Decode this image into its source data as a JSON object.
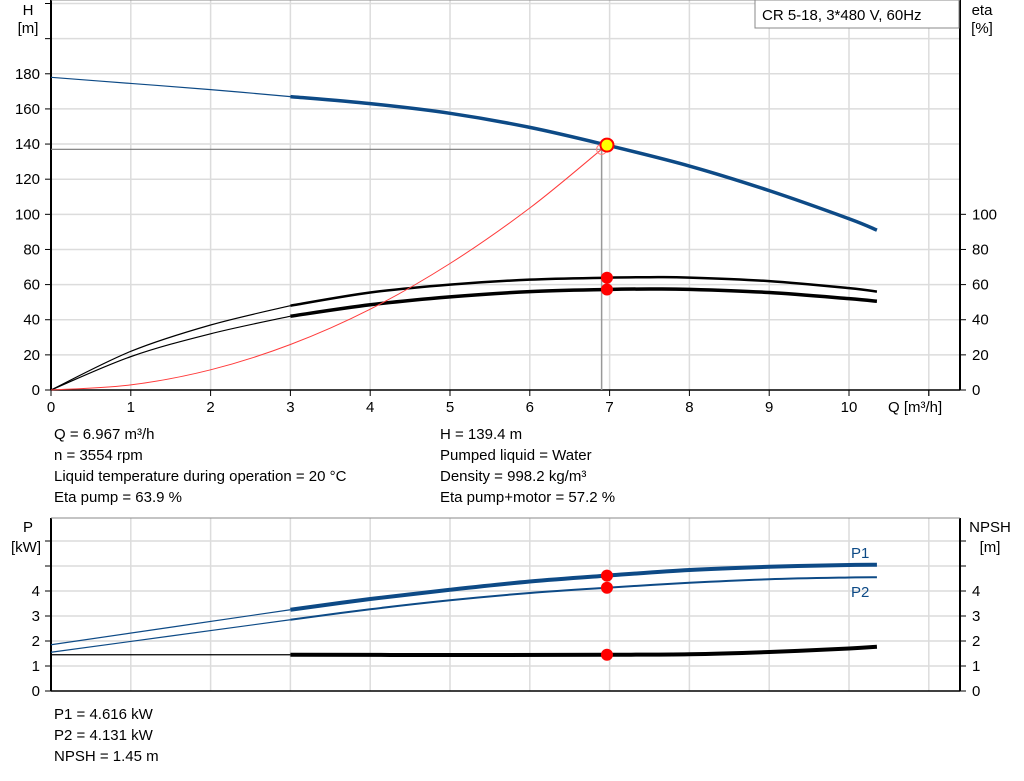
{
  "legend_box": "CR 5-18, 3*480 V, 60Hz",
  "chart_data": [
    {
      "type": "line",
      "xlabel": "Q [m³/h]",
      "ylabel": "H",
      "ylabel_unit": "[m]",
      "y2label": "eta",
      "y2label_unit": "[%]",
      "xlim": [
        0,
        11.4
      ],
      "ylim": [
        0,
        220
      ],
      "y2lim": [
        0,
        220
      ],
      "grid": true,
      "x_ticks": [
        "0",
        "1",
        "2",
        "3",
        "4",
        "5",
        "6",
        "7",
        "8",
        "9",
        "10"
      ],
      "y_ticks": [
        "0",
        "20",
        "40",
        "60",
        "80",
        "100",
        "120",
        "140",
        "160",
        "180"
      ],
      "y2_ticks": [
        "0",
        "20",
        "40",
        "60",
        "80",
        "100"
      ],
      "series": [
        {
          "id": "H",
          "axis": "left",
          "color": "#0d4a86",
          "thin_until": 3,
          "x": [
            0,
            1,
            2,
            3,
            4,
            5,
            6,
            6.967,
            8,
            9,
            10,
            10.35
          ],
          "y": [
            178,
            174.5,
            171,
            167,
            163,
            157.5,
            149.5,
            139.4,
            127.5,
            113.5,
            97.5,
            91
          ]
        },
        {
          "id": "eta_pump",
          "axis": "right",
          "color": "#000000",
          "thin_until": 3,
          "x": [
            0,
            1,
            2,
            3,
            4,
            5,
            6,
            6.967,
            7.5,
            8,
            9,
            10,
            10.35
          ],
          "y": [
            0,
            22,
            37,
            48,
            55.5,
            60,
            62.8,
            63.9,
            64.2,
            64,
            62,
            58,
            56
          ]
        },
        {
          "id": "eta_total",
          "axis": "right",
          "color": "#000000",
          "thin_until": 3,
          "x": [
            0,
            1,
            2,
            3,
            4,
            5,
            6,
            6.967,
            7.5,
            8,
            9,
            10,
            10.35
          ],
          "y": [
            0,
            19,
            32,
            42,
            48.5,
            53,
            56,
            57.2,
            57.5,
            57.3,
            55.5,
            52,
            50.5
          ]
        },
        {
          "id": "system_curve",
          "axis": "left",
          "color": "#ff3b3b",
          "thin_until": 99,
          "x": [
            0,
            1,
            2,
            3,
            4,
            5,
            6,
            6.9
          ],
          "y": [
            0,
            2.9,
            11.5,
            25.9,
            46,
            72,
            103.6,
            137
          ]
        }
      ],
      "operating_point": {
        "Q": 6.967,
        "H": 139.4,
        "eta_pump": 63.9,
        "eta_total": 57.2,
        "H_system": 137,
        "Q_system": 6.9
      }
    },
    {
      "type": "line",
      "ylabel": "P",
      "ylabel_unit": "[kW]",
      "y2label": "NPSH",
      "y2label_unit": "[m]",
      "xlim": [
        0,
        11.4
      ],
      "ylim": [
        0,
        6.9
      ],
      "y2lim": [
        0,
        6.9
      ],
      "grid": true,
      "y_ticks": [
        "0",
        "1",
        "2",
        "3",
        "4"
      ],
      "y2_ticks": [
        "0",
        "1",
        "2",
        "3",
        "4"
      ],
      "series": [
        {
          "id": "P1",
          "name": "P1",
          "axis": "left",
          "color": "#0d4a86",
          "thin_until": 3,
          "x": [
            0,
            3,
            4,
            5,
            6,
            6.967,
            8,
            9,
            10,
            10.35
          ],
          "y": [
            1.85,
            3.25,
            3.68,
            4.05,
            4.38,
            4.616,
            4.84,
            4.97,
            5.04,
            5.05
          ]
        },
        {
          "id": "P2",
          "name": "P2",
          "axis": "left",
          "color": "#0d4a86",
          "thin_until": 3,
          "x": [
            0,
            3,
            4,
            5,
            6,
            6.967,
            8,
            9,
            10,
            10.35
          ],
          "y": [
            1.55,
            2.85,
            3.27,
            3.63,
            3.92,
            4.131,
            4.33,
            4.47,
            4.54,
            4.55
          ]
        },
        {
          "id": "NPSH",
          "axis": "right",
          "color": "#000000",
          "thin_until": 3,
          "x": [
            0,
            3,
            5,
            6.967,
            8,
            9,
            10,
            10.35
          ],
          "y": [
            1.45,
            1.45,
            1.44,
            1.45,
            1.47,
            1.56,
            1.7,
            1.77
          ]
        }
      ],
      "operating_point": {
        "Q": 6.967,
        "P1": 4.616,
        "P2": 4.131,
        "NPSH": 1.45
      }
    }
  ],
  "info_left": [
    "Q = 6.967 m³/h",
    "n = 3554 rpm",
    "Liquid temperature during operation = 20 °C",
    "Eta pump = 63.9 %"
  ],
  "info_right": [
    "H = 139.4 m",
    "Pumped liquid = Water",
    "Density = 998.2 kg/m³",
    "Eta pump+motor = 57.2 %"
  ],
  "info_bottom": [
    "P1 = 4.616 kW",
    "P2 = 4.131 kW",
    "NPSH = 1.45 m"
  ]
}
